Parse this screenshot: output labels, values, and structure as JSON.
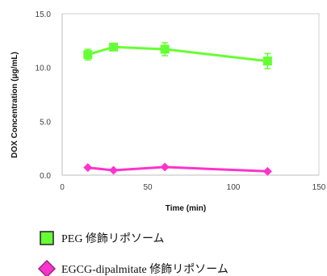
{
  "chart_data": {
    "type": "line",
    "xlabel": "Time (min)",
    "ylabel": "DOX Concentration (μg/mL)",
    "xlim": [
      0,
      150
    ],
    "ylim": [
      0,
      15
    ],
    "x_ticks": [
      "0",
      "50",
      "100",
      "150"
    ],
    "y_ticks": [
      "0.0",
      "5.0",
      "10.0",
      "15.0"
    ],
    "grid": false,
    "legend_position": "bottom",
    "series": [
      {
        "name": "PEG 修飾リポソーム",
        "color": "#66ff33",
        "marker": "square",
        "x": [
          15,
          30,
          60,
          120
        ],
        "y": [
          11.2,
          11.9,
          11.7,
          10.6
        ],
        "error": [
          0.5,
          0.3,
          0.6,
          0.7
        ]
      },
      {
        "name": "EGCG-dipalmitate 修飾リポソーム",
        "color": "#ff33cc",
        "marker": "diamond",
        "x": [
          15,
          30,
          60,
          120
        ],
        "y": [
          0.7,
          0.45,
          0.75,
          0.35
        ],
        "error": [
          0,
          0,
          0,
          0
        ]
      }
    ]
  }
}
